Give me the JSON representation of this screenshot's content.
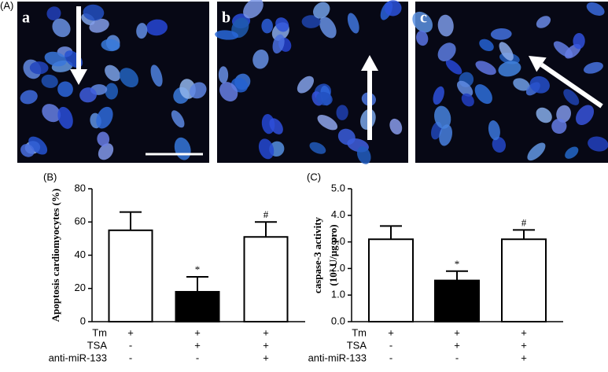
{
  "panel_label": "(A)",
  "images": [
    {
      "label": "a"
    },
    {
      "label": "b"
    },
    {
      "label": "c"
    }
  ],
  "chart_data": [
    {
      "type": "bar",
      "panel_label": "(B)",
      "ylabel": [
        "Apoptosis cardiomyocytes (%)"
      ],
      "values": [
        55,
        18,
        51
      ],
      "errors": [
        11,
        9,
        9
      ],
      "colors": [
        "#ffffff",
        "#000000",
        "#ffffff"
      ],
      "annotations": [
        null,
        "*",
        "#"
      ],
      "ylim": [
        0,
        80
      ],
      "yticks": [
        0,
        20,
        40,
        60,
        80
      ],
      "conditions": [
        {
          "name": "Tm",
          "signs": [
            "+",
            "+",
            "+"
          ]
        },
        {
          "name": "TSA",
          "signs": [
            "-",
            "+",
            "+"
          ]
        },
        {
          "name": "anti-miR-133",
          "signs": [
            "-",
            "-",
            "+"
          ]
        }
      ]
    },
    {
      "type": "bar",
      "panel_label": "(C)",
      "ylabel": [
        "caspase-3 activity",
        "(10³ U/μg pro)"
      ],
      "values": [
        3.1,
        1.55,
        3.1
      ],
      "errors": [
        0.5,
        0.35,
        0.35
      ],
      "colors": [
        "#ffffff",
        "#000000",
        "#ffffff"
      ],
      "annotations": [
        null,
        "*",
        "#"
      ],
      "ylim": [
        0,
        5
      ],
      "yticks": [
        {
          "value": 0,
          "label": "0.0"
        },
        {
          "value": 1,
          "label": "1.0"
        },
        {
          "value": 2,
          "label": "2.0"
        },
        {
          "value": 3,
          "label": "3.0"
        },
        {
          "value": 4,
          "label": "4.0"
        },
        {
          "value": 5,
          "label": "5.0"
        }
      ],
      "conditions": [
        {
          "name": "Tm",
          "signs": [
            "+",
            "+",
            "+"
          ]
        },
        {
          "name": "TSA",
          "signs": [
            "-",
            "+",
            "+"
          ]
        },
        {
          "name": "anti-miR-133",
          "signs": [
            "-",
            "-",
            "+"
          ]
        }
      ]
    }
  ]
}
